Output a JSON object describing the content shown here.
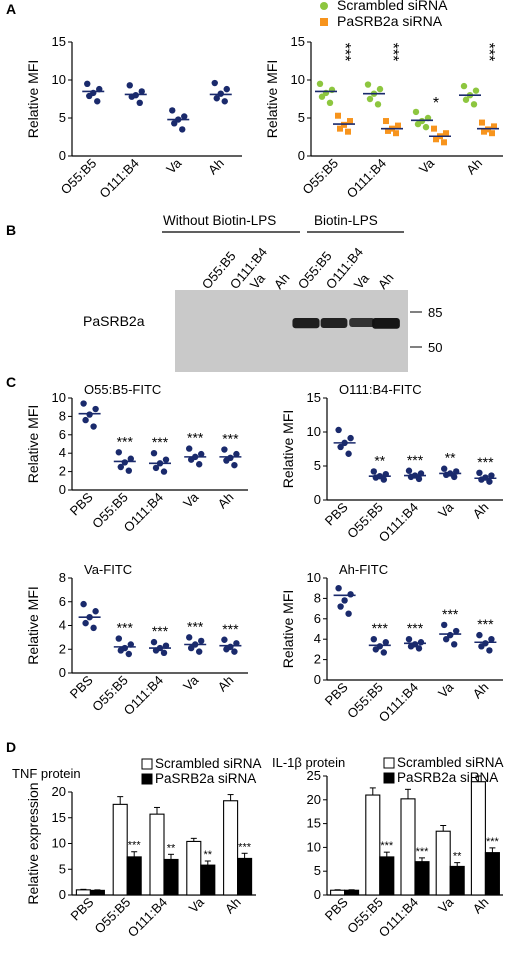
{
  "panel_letters": {
    "A": "A",
    "B": "B",
    "C": "C",
    "D": "D"
  },
  "colors": {
    "scrambled": "#8dc63f",
    "knockdown": "#f7941d",
    "line": "#1a2a6c",
    "blot_bg": "#c9c9c9",
    "band": "#111111"
  },
  "panel_b": {
    "group_without": "Without Biotin-LPS",
    "group_with": "Biotin-LPS",
    "lanes_without": [
      "O55:B5",
      "O111:B4",
      "Va",
      "Ah"
    ],
    "lanes_with": [
      "O55:B5",
      "O111:B4",
      "Va",
      "Ah"
    ],
    "row_label": "PaSRB2a",
    "markers": [
      "85",
      "50"
    ],
    "band_intensity": [
      0,
      0,
      0,
      0,
      0.85,
      0.8,
      0.6,
      0.95
    ]
  },
  "chart_data": [
    {
      "id": "A1",
      "type": "scatter",
      "ylabel": "Relative MFI",
      "ylim": [
        0,
        15
      ],
      "yticks": [
        0,
        5,
        10,
        15
      ],
      "categories": [
        "O55:B5",
        "O111:B4",
        "Va",
        "Ah"
      ],
      "series": [
        {
          "points": [
            [
              9.5,
              8.8,
              8.3,
              7.9,
              7.2
            ],
            [
              9.3,
              8.5,
              8.0,
              7.8,
              7.0
            ],
            [
              6.0,
              5.2,
              4.8,
              4.3,
              3.5
            ],
            [
              9.6,
              8.8,
              8.2,
              7.6,
              7.2
            ]
          ],
          "means": [
            8.5,
            8.1,
            4.8,
            8.1
          ]
        }
      ],
      "sig": [
        "",
        "",
        "",
        ""
      ]
    },
    {
      "id": "A2",
      "type": "scatter",
      "ylabel": "Relative MFI",
      "ylim": [
        0,
        15
      ],
      "yticks": [
        0,
        5,
        10,
        15
      ],
      "categories": [
        "O55:B5",
        "O111:B4",
        "Va",
        "Ah"
      ],
      "legend": [
        "Scrambled siRNA",
        "PaSRB2a siRNA"
      ],
      "series": [
        {
          "name": "Scrambled siRNA",
          "points": [
            [
              9.5,
              8.7,
              8.3,
              7.8,
              7.0
            ],
            [
              9.4,
              8.8,
              8.2,
              7.5,
              6.8
            ],
            [
              5.8,
              5.0,
              4.6,
              4.2,
              3.8
            ],
            [
              9.2,
              8.6,
              8.0,
              7.4,
              6.8
            ]
          ],
          "means": [
            8.5,
            8.2,
            4.7,
            8.0
          ]
        },
        {
          "name": "PaSRB2a siRNA",
          "points": [
            [
              5.3,
              4.6,
              4.1,
              3.6,
              3.2
            ],
            [
              4.6,
              4.0,
              3.6,
              3.3,
              3.0
            ],
            [
              3.6,
              3.0,
              2.6,
              2.2,
              1.8
            ],
            [
              4.4,
              3.9,
              3.5,
              3.2,
              3.0
            ]
          ],
          "means": [
            4.2,
            3.6,
            2.6,
            3.6
          ]
        }
      ],
      "sig": [
        "***",
        "***",
        "*",
        "***"
      ]
    },
    {
      "id": "C1",
      "type": "scatter",
      "title": "O55:B5-FITC",
      "ylabel": "Relative MFI",
      "ylim": [
        0,
        10
      ],
      "yticks": [
        0,
        2,
        4,
        6,
        8,
        10
      ],
      "categories": [
        "PBS",
        "O55:B5",
        "O111:B4",
        "Va",
        "Ah"
      ],
      "series": [
        {
          "points": [
            [
              9.4,
              8.8,
              8.2,
              7.6,
              6.9
            ],
            [
              4.1,
              3.4,
              3.0,
              2.5,
              2.1
            ],
            [
              4.0,
              3.3,
              2.9,
              2.4,
              2.0
            ],
            [
              4.5,
              3.9,
              3.6,
              3.3,
              2.8
            ],
            [
              4.4,
              3.9,
              3.5,
              3.2,
              2.7
            ]
          ],
          "means": [
            8.3,
            3.1,
            2.9,
            3.6,
            3.6
          ]
        }
      ],
      "sig": [
        "",
        "***",
        "***",
        "***",
        "***"
      ]
    },
    {
      "id": "C2",
      "type": "scatter",
      "title": "O111:B4-FITC",
      "ylabel": "Relative MFI",
      "ylim": [
        0,
        15
      ],
      "yticks": [
        0,
        5,
        10,
        15
      ],
      "categories": [
        "PBS",
        "O55:B5",
        "O111:B4",
        "Va",
        "Ah"
      ],
      "series": [
        {
          "points": [
            [
              10.3,
              9.1,
              8.4,
              7.8,
              6.8
            ],
            [
              4.2,
              3.8,
              3.5,
              3.3,
              3.0
            ],
            [
              4.3,
              3.9,
              3.6,
              3.4,
              3.1
            ],
            [
              4.6,
              4.2,
              3.9,
              3.7,
              3.4
            ],
            [
              4.0,
              3.6,
              3.3,
              3.0,
              2.7
            ]
          ],
          "means": [
            8.4,
            3.5,
            3.6,
            3.9,
            3.2
          ]
        }
      ],
      "sig": [
        "",
        "**",
        "***",
        "**",
        "***"
      ]
    },
    {
      "id": "C3",
      "type": "scatter",
      "title": "Va-FITC",
      "ylabel": "Relative MFI",
      "ylim": [
        0,
        8
      ],
      "yticks": [
        0,
        2,
        4,
        6,
        8
      ],
      "categories": [
        "PBS",
        "O55:B5",
        "O111:B4",
        "Va",
        "Ah"
      ],
      "series": [
        {
          "points": [
            [
              5.8,
              5.2,
              4.7,
              4.2,
              3.8
            ],
            [
              2.9,
              2.4,
              2.1,
              1.9,
              1.6
            ],
            [
              2.6,
              2.3,
              2.1,
              1.9,
              1.7
            ],
            [
              3.0,
              2.7,
              2.4,
              2.1,
              1.8
            ],
            [
              2.8,
              2.5,
              2.2,
              2.0,
              1.8
            ]
          ],
          "means": [
            4.7,
            2.2,
            2.1,
            2.4,
            2.3
          ]
        }
      ],
      "sig": [
        "",
        "***",
        "***",
        "***",
        "***"
      ]
    },
    {
      "id": "C4",
      "type": "scatter",
      "title": "Ah-FITC",
      "ylabel": "Relative MFI",
      "ylim": [
        0,
        10
      ],
      "yticks": [
        0,
        2,
        4,
        6,
        8,
        10
      ],
      "categories": [
        "PBS",
        "O55:B5",
        "O111:B4",
        "Va",
        "Ah"
      ],
      "series": [
        {
          "points": [
            [
              9.0,
              8.4,
              7.8,
              7.2,
              6.5
            ],
            [
              4.0,
              3.7,
              3.3,
              3.0,
              2.7
            ],
            [
              4.0,
              3.7,
              3.5,
              3.3,
              3.1
            ],
            [
              5.4,
              4.8,
              4.4,
              4.0,
              3.5
            ],
            [
              4.4,
              4.0,
              3.6,
              3.3,
              2.9
            ]
          ],
          "means": [
            8.3,
            3.4,
            3.6,
            4.5,
            3.7
          ]
        }
      ],
      "sig": [
        "",
        "***",
        "***",
        "***",
        "***"
      ]
    },
    {
      "id": "D1",
      "type": "bar",
      "title": "TNF protein",
      "ylabel": "Relative expression",
      "ylim": [
        0,
        20
      ],
      "yticks": [
        0,
        5,
        10,
        15,
        20
      ],
      "categories": [
        "PBS",
        "O55:B5",
        "O111:B4",
        "Va",
        "Ah"
      ],
      "legend": [
        "Scrambled siRNA",
        "PaSRB2a siRNA"
      ],
      "series": [
        {
          "name": "Scrambled siRNA",
          "values": [
            1.0,
            17.6,
            15.7,
            10.4,
            18.3
          ],
          "errors": [
            0.1,
            1.5,
            1.3,
            0.6,
            1.2
          ]
        },
        {
          "name": "PaSRB2a siRNA",
          "values": [
            0.9,
            7.4,
            6.9,
            5.8,
            7.1
          ],
          "errors": [
            0.1,
            1.0,
            1.0,
            0.8,
            1.0
          ]
        }
      ],
      "sig": [
        "",
        "***",
        "**",
        "**",
        "***"
      ]
    },
    {
      "id": "D2",
      "type": "bar",
      "title": "IL-1β protein",
      "ylabel": "",
      "ylim": [
        0,
        25
      ],
      "yticks": [
        0,
        5,
        10,
        15,
        20,
        25
      ],
      "categories": [
        "PBS",
        "O55:B5",
        "O111:B4",
        "Va",
        "Ah"
      ],
      "legend": [
        "Scrambled siRNA",
        "PaSRB2a siRNA"
      ],
      "series": [
        {
          "name": "Scrambled siRNA",
          "values": [
            1.0,
            21.0,
            20.2,
            13.4,
            23.8
          ],
          "errors": [
            0.1,
            1.5,
            2.0,
            1.2,
            1.2
          ]
        },
        {
          "name": "PaSRB2a siRNA",
          "values": [
            1.0,
            8.0,
            7.0,
            6.0,
            8.9
          ],
          "errors": [
            0.1,
            1.0,
            0.8,
            0.8,
            1.0
          ]
        }
      ],
      "sig": [
        "",
        "***",
        "***",
        "**",
        "***"
      ]
    }
  ]
}
